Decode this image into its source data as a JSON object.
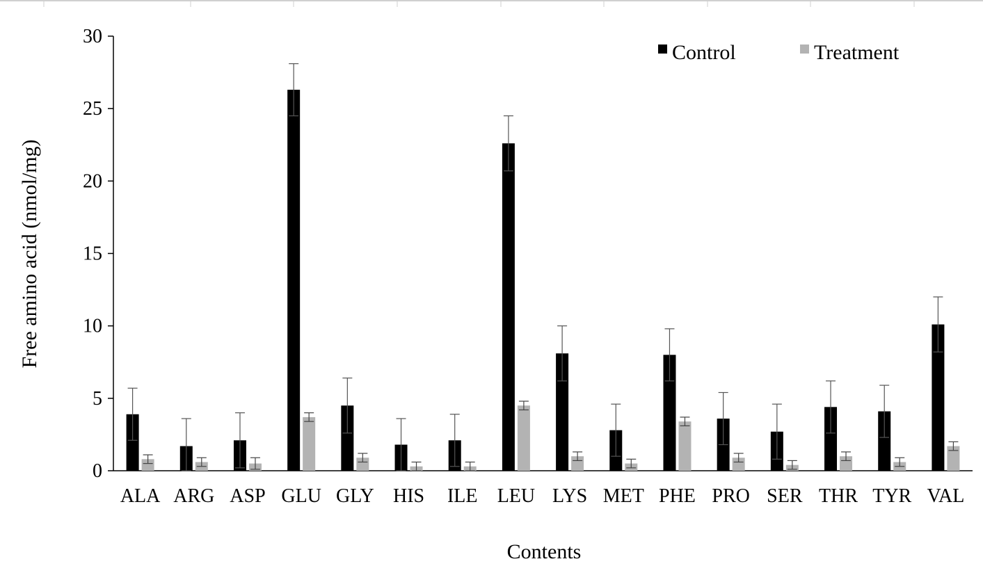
{
  "chart_data": {
    "type": "bar",
    "title": "",
    "xlabel": "Contents",
    "ylabel": "Free amino acid (nmol/mg)",
    "ylim": [
      0,
      30
    ],
    "yticks": [
      0,
      5,
      10,
      15,
      20,
      25,
      30
    ],
    "grid": false,
    "legend_position": "top-right",
    "categories": [
      "ALA",
      "ARG",
      "ASP",
      "GLU",
      "GLY",
      "HIS",
      "ILE",
      "LEU",
      "LYS",
      "MET",
      "PHE",
      "PRO",
      "SER",
      "THR",
      "TYR",
      "VAL"
    ],
    "series": [
      {
        "name": "Control",
        "color": "#000000",
        "values": [
          3.9,
          1.7,
          2.1,
          26.3,
          4.5,
          1.8,
          2.1,
          22.6,
          8.1,
          2.8,
          8.0,
          3.6,
          2.7,
          4.4,
          4.1,
          10.1
        ],
        "errors": [
          1.8,
          1.9,
          1.9,
          1.8,
          1.9,
          1.8,
          1.8,
          1.9,
          1.9,
          1.8,
          1.8,
          1.8,
          1.9,
          1.8,
          1.8,
          1.9
        ]
      },
      {
        "name": "Treatment",
        "color": "#b3b3b3",
        "values": [
          0.8,
          0.6,
          0.5,
          3.7,
          0.9,
          0.3,
          0.3,
          4.5,
          1.0,
          0.5,
          3.4,
          0.9,
          0.4,
          1.0,
          0.6,
          1.7
        ],
        "errors": [
          0.3,
          0.3,
          0.4,
          0.3,
          0.3,
          0.3,
          0.3,
          0.3,
          0.3,
          0.3,
          0.3,
          0.3,
          0.3,
          0.3,
          0.3,
          0.3
        ]
      }
    ]
  }
}
